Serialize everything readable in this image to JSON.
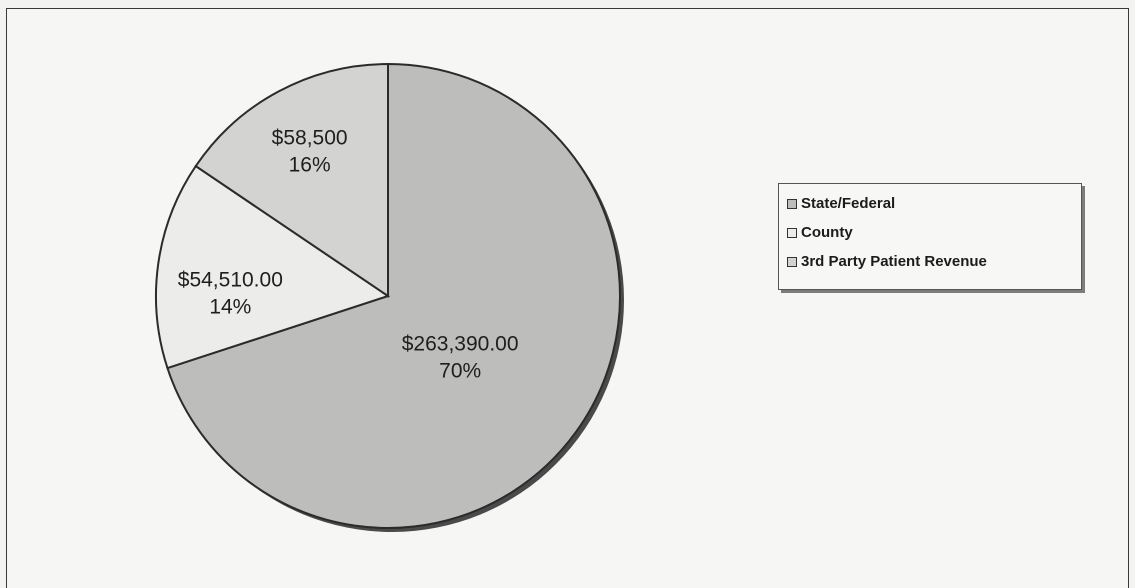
{
  "chart_data": {
    "type": "pie",
    "title": "",
    "categories": [
      "State/Federal",
      "County",
      "3rd Party Patient Revenue"
    ],
    "values": [
      263390.0,
      54510.0,
      58500
    ],
    "value_labels": [
      "$263,390.00",
      "$54,510.00",
      "$58,500"
    ],
    "percent_labels": [
      "70%",
      "14%",
      "16%"
    ],
    "colors": [
      "#bdbdbb",
      "#ececea",
      "#d3d3d1"
    ],
    "start_angle_deg": 0,
    "direction": "clockwise",
    "legend_position": "right"
  },
  "legend": {
    "items": [
      {
        "label": "State/Federal",
        "color": "#bdbdbb"
      },
      {
        "label": "County",
        "color": "#ececea"
      },
      {
        "label": "3rd Party Patient Revenue",
        "color": "#d3d3d1"
      }
    ]
  }
}
